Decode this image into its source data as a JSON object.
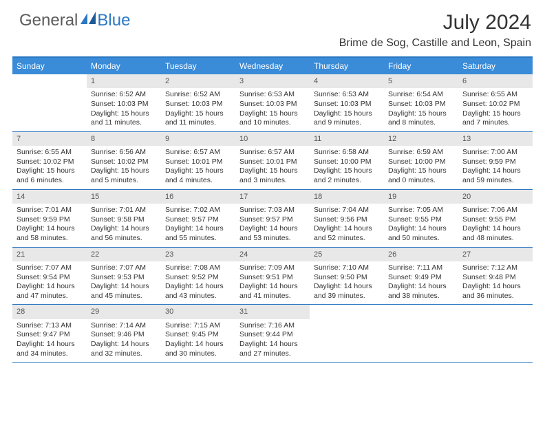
{
  "logo": {
    "word1": "General",
    "word2": "Blue"
  },
  "title": "July 2024",
  "location": "Brime de Sog, Castille and Leon, Spain",
  "dow": [
    "Sunday",
    "Monday",
    "Tuesday",
    "Wednesday",
    "Thursday",
    "Friday",
    "Saturday"
  ],
  "colors": {
    "header_bg": "#3a8bd8",
    "border": "#2b78c2",
    "daynum_bg": "#e8e8e8",
    "text": "#333333",
    "logo_gray": "#5b5b5b",
    "logo_blue": "#2b78c2"
  },
  "weeks": [
    [
      {
        "n": "",
        "sr": "",
        "ss": "",
        "dl": ""
      },
      {
        "n": "1",
        "sr": "Sunrise: 6:52 AM",
        "ss": "Sunset: 10:03 PM",
        "dl": "Daylight: 15 hours and 11 minutes."
      },
      {
        "n": "2",
        "sr": "Sunrise: 6:52 AM",
        "ss": "Sunset: 10:03 PM",
        "dl": "Daylight: 15 hours and 11 minutes."
      },
      {
        "n": "3",
        "sr": "Sunrise: 6:53 AM",
        "ss": "Sunset: 10:03 PM",
        "dl": "Daylight: 15 hours and 10 minutes."
      },
      {
        "n": "4",
        "sr": "Sunrise: 6:53 AM",
        "ss": "Sunset: 10:03 PM",
        "dl": "Daylight: 15 hours and 9 minutes."
      },
      {
        "n": "5",
        "sr": "Sunrise: 6:54 AM",
        "ss": "Sunset: 10:03 PM",
        "dl": "Daylight: 15 hours and 8 minutes."
      },
      {
        "n": "6",
        "sr": "Sunrise: 6:55 AM",
        "ss": "Sunset: 10:02 PM",
        "dl": "Daylight: 15 hours and 7 minutes."
      }
    ],
    [
      {
        "n": "7",
        "sr": "Sunrise: 6:55 AM",
        "ss": "Sunset: 10:02 PM",
        "dl": "Daylight: 15 hours and 6 minutes."
      },
      {
        "n": "8",
        "sr": "Sunrise: 6:56 AM",
        "ss": "Sunset: 10:02 PM",
        "dl": "Daylight: 15 hours and 5 minutes."
      },
      {
        "n": "9",
        "sr": "Sunrise: 6:57 AM",
        "ss": "Sunset: 10:01 PM",
        "dl": "Daylight: 15 hours and 4 minutes."
      },
      {
        "n": "10",
        "sr": "Sunrise: 6:57 AM",
        "ss": "Sunset: 10:01 PM",
        "dl": "Daylight: 15 hours and 3 minutes."
      },
      {
        "n": "11",
        "sr": "Sunrise: 6:58 AM",
        "ss": "Sunset: 10:00 PM",
        "dl": "Daylight: 15 hours and 2 minutes."
      },
      {
        "n": "12",
        "sr": "Sunrise: 6:59 AM",
        "ss": "Sunset: 10:00 PM",
        "dl": "Daylight: 15 hours and 0 minutes."
      },
      {
        "n": "13",
        "sr": "Sunrise: 7:00 AM",
        "ss": "Sunset: 9:59 PM",
        "dl": "Daylight: 14 hours and 59 minutes."
      }
    ],
    [
      {
        "n": "14",
        "sr": "Sunrise: 7:01 AM",
        "ss": "Sunset: 9:59 PM",
        "dl": "Daylight: 14 hours and 58 minutes."
      },
      {
        "n": "15",
        "sr": "Sunrise: 7:01 AM",
        "ss": "Sunset: 9:58 PM",
        "dl": "Daylight: 14 hours and 56 minutes."
      },
      {
        "n": "16",
        "sr": "Sunrise: 7:02 AM",
        "ss": "Sunset: 9:57 PM",
        "dl": "Daylight: 14 hours and 55 minutes."
      },
      {
        "n": "17",
        "sr": "Sunrise: 7:03 AM",
        "ss": "Sunset: 9:57 PM",
        "dl": "Daylight: 14 hours and 53 minutes."
      },
      {
        "n": "18",
        "sr": "Sunrise: 7:04 AM",
        "ss": "Sunset: 9:56 PM",
        "dl": "Daylight: 14 hours and 52 minutes."
      },
      {
        "n": "19",
        "sr": "Sunrise: 7:05 AM",
        "ss": "Sunset: 9:55 PM",
        "dl": "Daylight: 14 hours and 50 minutes."
      },
      {
        "n": "20",
        "sr": "Sunrise: 7:06 AM",
        "ss": "Sunset: 9:55 PM",
        "dl": "Daylight: 14 hours and 48 minutes."
      }
    ],
    [
      {
        "n": "21",
        "sr": "Sunrise: 7:07 AM",
        "ss": "Sunset: 9:54 PM",
        "dl": "Daylight: 14 hours and 47 minutes."
      },
      {
        "n": "22",
        "sr": "Sunrise: 7:07 AM",
        "ss": "Sunset: 9:53 PM",
        "dl": "Daylight: 14 hours and 45 minutes."
      },
      {
        "n": "23",
        "sr": "Sunrise: 7:08 AM",
        "ss": "Sunset: 9:52 PM",
        "dl": "Daylight: 14 hours and 43 minutes."
      },
      {
        "n": "24",
        "sr": "Sunrise: 7:09 AM",
        "ss": "Sunset: 9:51 PM",
        "dl": "Daylight: 14 hours and 41 minutes."
      },
      {
        "n": "25",
        "sr": "Sunrise: 7:10 AM",
        "ss": "Sunset: 9:50 PM",
        "dl": "Daylight: 14 hours and 39 minutes."
      },
      {
        "n": "26",
        "sr": "Sunrise: 7:11 AM",
        "ss": "Sunset: 9:49 PM",
        "dl": "Daylight: 14 hours and 38 minutes."
      },
      {
        "n": "27",
        "sr": "Sunrise: 7:12 AM",
        "ss": "Sunset: 9:48 PM",
        "dl": "Daylight: 14 hours and 36 minutes."
      }
    ],
    [
      {
        "n": "28",
        "sr": "Sunrise: 7:13 AM",
        "ss": "Sunset: 9:47 PM",
        "dl": "Daylight: 14 hours and 34 minutes."
      },
      {
        "n": "29",
        "sr": "Sunrise: 7:14 AM",
        "ss": "Sunset: 9:46 PM",
        "dl": "Daylight: 14 hours and 32 minutes."
      },
      {
        "n": "30",
        "sr": "Sunrise: 7:15 AM",
        "ss": "Sunset: 9:45 PM",
        "dl": "Daylight: 14 hours and 30 minutes."
      },
      {
        "n": "31",
        "sr": "Sunrise: 7:16 AM",
        "ss": "Sunset: 9:44 PM",
        "dl": "Daylight: 14 hours and 27 minutes."
      },
      {
        "n": "",
        "sr": "",
        "ss": "",
        "dl": ""
      },
      {
        "n": "",
        "sr": "",
        "ss": "",
        "dl": ""
      },
      {
        "n": "",
        "sr": "",
        "ss": "",
        "dl": ""
      }
    ]
  ]
}
